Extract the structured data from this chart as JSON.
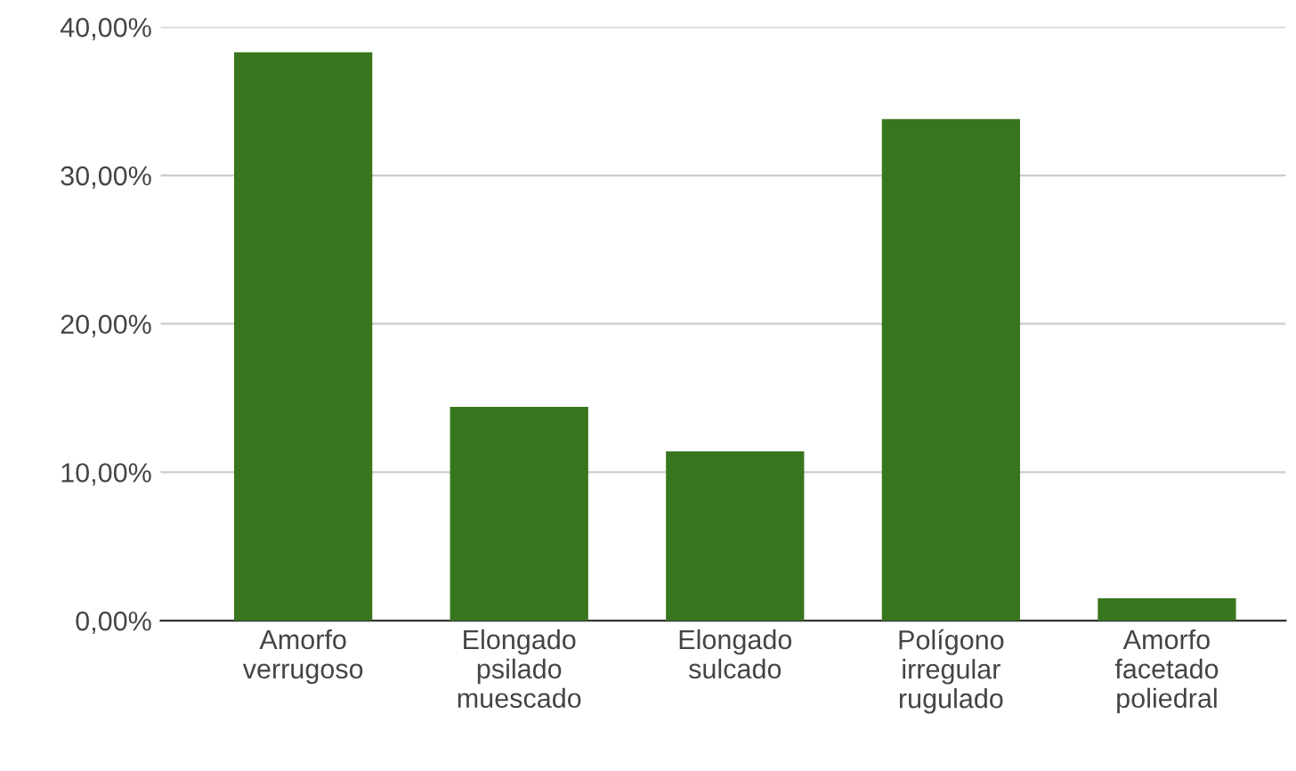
{
  "chart_data": {
    "type": "bar",
    "categories": [
      "Amorfo\nverrugoso",
      "Elongado\npsilado\nmuescado",
      "Elongado\nsulcado",
      "Polígono\nirregular\nrugulado",
      "Amorfo\nfacetado\npoliedral"
    ],
    "values": [
      38.3,
      14.4,
      11.4,
      33.8,
      1.5
    ],
    "color": "#38761d",
    "ylim": [
      0,
      40
    ],
    "yticks": [
      {
        "value": 0,
        "label": "0,00%"
      },
      {
        "value": 10,
        "label": "10,00%"
      },
      {
        "value": 20,
        "label": "20,00%"
      },
      {
        "value": 30,
        "label": "30,00%"
      },
      {
        "value": 40,
        "label": "40,00%"
      }
    ],
    "grid": "y",
    "legend": false
  }
}
